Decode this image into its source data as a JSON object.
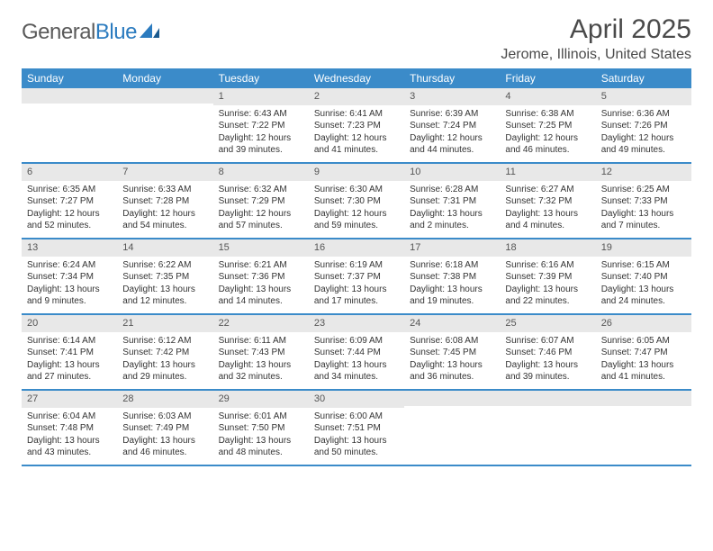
{
  "logo": {
    "textGray": "General",
    "textBlue": "Blue"
  },
  "header": {
    "monthTitle": "April 2025",
    "location": "Jerome, Illinois, United States"
  },
  "colors": {
    "headerBar": "#3b8bc9",
    "dayNumBg": "#e8e8e8",
    "text": "#333333",
    "logoBlue": "#2b7bbf"
  },
  "weekdays": [
    "Sunday",
    "Monday",
    "Tuesday",
    "Wednesday",
    "Thursday",
    "Friday",
    "Saturday"
  ],
  "weeks": [
    [
      {
        "empty": true
      },
      {
        "empty": true
      },
      {
        "day": "1",
        "sunrise": "6:43 AM",
        "sunset": "7:22 PM",
        "daylight": "12 hours and 39 minutes."
      },
      {
        "day": "2",
        "sunrise": "6:41 AM",
        "sunset": "7:23 PM",
        "daylight": "12 hours and 41 minutes."
      },
      {
        "day": "3",
        "sunrise": "6:39 AM",
        "sunset": "7:24 PM",
        "daylight": "12 hours and 44 minutes."
      },
      {
        "day": "4",
        "sunrise": "6:38 AM",
        "sunset": "7:25 PM",
        "daylight": "12 hours and 46 minutes."
      },
      {
        "day": "5",
        "sunrise": "6:36 AM",
        "sunset": "7:26 PM",
        "daylight": "12 hours and 49 minutes."
      }
    ],
    [
      {
        "day": "6",
        "sunrise": "6:35 AM",
        "sunset": "7:27 PM",
        "daylight": "12 hours and 52 minutes."
      },
      {
        "day": "7",
        "sunrise": "6:33 AM",
        "sunset": "7:28 PM",
        "daylight": "12 hours and 54 minutes."
      },
      {
        "day": "8",
        "sunrise": "6:32 AM",
        "sunset": "7:29 PM",
        "daylight": "12 hours and 57 minutes."
      },
      {
        "day": "9",
        "sunrise": "6:30 AM",
        "sunset": "7:30 PM",
        "daylight": "12 hours and 59 minutes."
      },
      {
        "day": "10",
        "sunrise": "6:28 AM",
        "sunset": "7:31 PM",
        "daylight": "13 hours and 2 minutes."
      },
      {
        "day": "11",
        "sunrise": "6:27 AM",
        "sunset": "7:32 PM",
        "daylight": "13 hours and 4 minutes."
      },
      {
        "day": "12",
        "sunrise": "6:25 AM",
        "sunset": "7:33 PM",
        "daylight": "13 hours and 7 minutes."
      }
    ],
    [
      {
        "day": "13",
        "sunrise": "6:24 AM",
        "sunset": "7:34 PM",
        "daylight": "13 hours and 9 minutes."
      },
      {
        "day": "14",
        "sunrise": "6:22 AM",
        "sunset": "7:35 PM",
        "daylight": "13 hours and 12 minutes."
      },
      {
        "day": "15",
        "sunrise": "6:21 AM",
        "sunset": "7:36 PM",
        "daylight": "13 hours and 14 minutes."
      },
      {
        "day": "16",
        "sunrise": "6:19 AM",
        "sunset": "7:37 PM",
        "daylight": "13 hours and 17 minutes."
      },
      {
        "day": "17",
        "sunrise": "6:18 AM",
        "sunset": "7:38 PM",
        "daylight": "13 hours and 19 minutes."
      },
      {
        "day": "18",
        "sunrise": "6:16 AM",
        "sunset": "7:39 PM",
        "daylight": "13 hours and 22 minutes."
      },
      {
        "day": "19",
        "sunrise": "6:15 AM",
        "sunset": "7:40 PM",
        "daylight": "13 hours and 24 minutes."
      }
    ],
    [
      {
        "day": "20",
        "sunrise": "6:14 AM",
        "sunset": "7:41 PM",
        "daylight": "13 hours and 27 minutes."
      },
      {
        "day": "21",
        "sunrise": "6:12 AM",
        "sunset": "7:42 PM",
        "daylight": "13 hours and 29 minutes."
      },
      {
        "day": "22",
        "sunrise": "6:11 AM",
        "sunset": "7:43 PM",
        "daylight": "13 hours and 32 minutes."
      },
      {
        "day": "23",
        "sunrise": "6:09 AM",
        "sunset": "7:44 PM",
        "daylight": "13 hours and 34 minutes."
      },
      {
        "day": "24",
        "sunrise": "6:08 AM",
        "sunset": "7:45 PM",
        "daylight": "13 hours and 36 minutes."
      },
      {
        "day": "25",
        "sunrise": "6:07 AM",
        "sunset": "7:46 PM",
        "daylight": "13 hours and 39 minutes."
      },
      {
        "day": "26",
        "sunrise": "6:05 AM",
        "sunset": "7:47 PM",
        "daylight": "13 hours and 41 minutes."
      }
    ],
    [
      {
        "day": "27",
        "sunrise": "6:04 AM",
        "sunset": "7:48 PM",
        "daylight": "13 hours and 43 minutes."
      },
      {
        "day": "28",
        "sunrise": "6:03 AM",
        "sunset": "7:49 PM",
        "daylight": "13 hours and 46 minutes."
      },
      {
        "day": "29",
        "sunrise": "6:01 AM",
        "sunset": "7:50 PM",
        "daylight": "13 hours and 48 minutes."
      },
      {
        "day": "30",
        "sunrise": "6:00 AM",
        "sunset": "7:51 PM",
        "daylight": "13 hours and 50 minutes."
      },
      {
        "empty": true
      },
      {
        "empty": true
      },
      {
        "empty": true
      }
    ]
  ],
  "labels": {
    "sunrise": "Sunrise:",
    "sunset": "Sunset:",
    "daylight": "Daylight:"
  }
}
